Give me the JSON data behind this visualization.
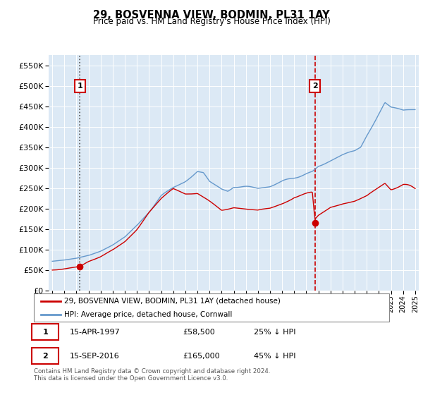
{
  "title": "29, BOSVENNA VIEW, BODMIN, PL31 1AY",
  "subtitle": "Price paid vs. HM Land Registry's House Price Index (HPI)",
  "hpi_color": "#6699cc",
  "price_color": "#cc0000",
  "background_color": "#dce9f5",
  "sale1_date": 1997.29,
  "sale1_price": 58500,
  "sale2_date": 2016.71,
  "sale2_price": 165000,
  "legend_line1": "29, BOSVENNA VIEW, BODMIN, PL31 1AY (detached house)",
  "legend_line2": "HPI: Average price, detached house, Cornwall",
  "table_row1": [
    "1",
    "15-APR-1997",
    "£58,500",
    "25% ↓ HPI"
  ],
  "table_row2": [
    "2",
    "15-SEP-2016",
    "£165,000",
    "45% ↓ HPI"
  ],
  "footer": "Contains HM Land Registry data © Crown copyright and database right 2024.\nThis data is licensed under the Open Government Licence v3.0.",
  "ylim": [
    0,
    575000
  ],
  "yticks": [
    0,
    50000,
    100000,
    150000,
    200000,
    250000,
    300000,
    350000,
    400000,
    450000,
    500000,
    550000
  ],
  "xlim_start": 1994.7,
  "xlim_end": 2025.3
}
